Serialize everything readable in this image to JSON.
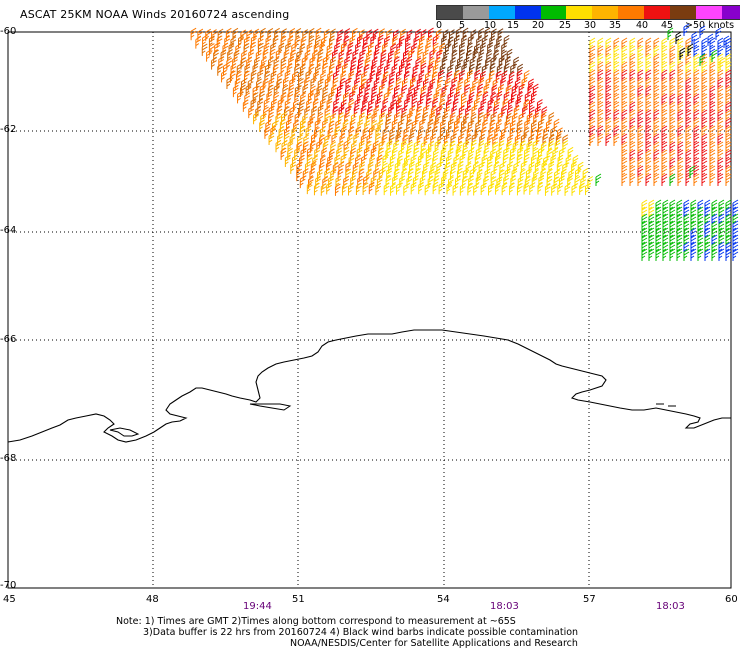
{
  "title": "ASCAT 25KM NOAA Winds 20160724 ascending",
  "colorbar": {
    "colors": [
      "#4a4a4a",
      "#9a9a9a",
      "#00a8ff",
      "#0033ee",
      "#00bb00",
      "#ffe000",
      "#ffb400",
      "#ff7a00",
      "#ee1111",
      "#7a3c10",
      "#ff44ff",
      "#8800cc",
      "#330088"
    ],
    "ticks": [
      "0",
      "5",
      "10",
      "15",
      "20",
      "25",
      "30",
      "35",
      "40",
      "45",
      ">50 knots"
    ]
  },
  "axes": {
    "y_ticks": [
      "-60",
      "-62",
      "-64",
      "-66",
      "-68",
      "-70"
    ],
    "x_ticks": [
      "45",
      "48",
      "51",
      "54",
      "57",
      "60"
    ]
  },
  "times": [
    "19:44",
    "18:03",
    "18:03"
  ],
  "notes": [
    "Note: 1) Times are GMT 2)Times along bottom correspond to measurement at ~65S",
    "3)Data buffer is 22 hrs from 20160724 4) Black wind barbs indicate possible contamination",
    "NOAA/NESDIS/Center for Satellite Applications and Research"
  ],
  "wind_palette": {
    "dark_brown": "#7a3c10",
    "orange": "#ff7a00",
    "dark_orange": "#e07000",
    "gold": "#ffb400",
    "yellow": "#ffe000",
    "red": "#ee1111",
    "green": "#00bb00",
    "blue": "#0033ee",
    "black": "#000000"
  }
}
